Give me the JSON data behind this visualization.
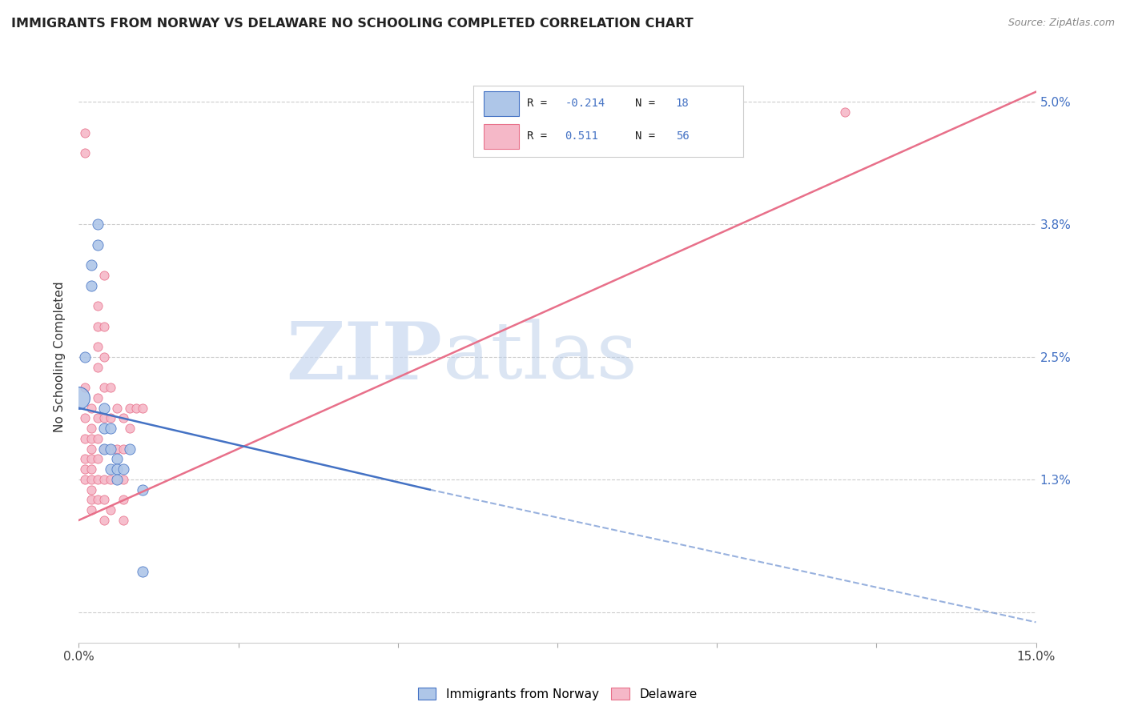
{
  "title": "IMMIGRANTS FROM NORWAY VS DELAWARE NO SCHOOLING COMPLETED CORRELATION CHART",
  "source": "Source: ZipAtlas.com",
  "ylabel": "No Schooling Completed",
  "xmin": 0.0,
  "xmax": 0.15,
  "ymin": -0.003,
  "ymax": 0.053,
  "watermark_zip": "ZIP",
  "watermark_atlas": "atlas",
  "legend_line1": "R = -0.214   N = 18",
  "legend_line2": "R =   0.511   N = 56",
  "legend_blue_label": "Immigrants from Norway",
  "legend_pink_label": "Delaware",
  "blue_color": "#aec6e8",
  "pink_color": "#f5b8c8",
  "blue_line_color": "#4472c4",
  "pink_line_color": "#e8708a",
  "blue_dots": [
    [
      0.001,
      0.025
    ],
    [
      0.002,
      0.034
    ],
    [
      0.002,
      0.032
    ],
    [
      0.003,
      0.038
    ],
    [
      0.003,
      0.036
    ],
    [
      0.004,
      0.02
    ],
    [
      0.004,
      0.018
    ],
    [
      0.004,
      0.016
    ],
    [
      0.005,
      0.018
    ],
    [
      0.005,
      0.016
    ],
    [
      0.005,
      0.014
    ],
    [
      0.006,
      0.015
    ],
    [
      0.006,
      0.014
    ],
    [
      0.006,
      0.013
    ],
    [
      0.007,
      0.014
    ],
    [
      0.008,
      0.016
    ],
    [
      0.01,
      0.012
    ],
    [
      0.01,
      0.004
    ]
  ],
  "pink_dots": [
    [
      0.001,
      0.047
    ],
    [
      0.001,
      0.045
    ],
    [
      0.001,
      0.022
    ],
    [
      0.001,
      0.019
    ],
    [
      0.001,
      0.017
    ],
    [
      0.001,
      0.015
    ],
    [
      0.001,
      0.014
    ],
    [
      0.001,
      0.013
    ],
    [
      0.002,
      0.02
    ],
    [
      0.002,
      0.018
    ],
    [
      0.002,
      0.017
    ],
    [
      0.002,
      0.016
    ],
    [
      0.002,
      0.015
    ],
    [
      0.002,
      0.014
    ],
    [
      0.002,
      0.013
    ],
    [
      0.002,
      0.012
    ],
    [
      0.002,
      0.011
    ],
    [
      0.002,
      0.01
    ],
    [
      0.003,
      0.03
    ],
    [
      0.003,
      0.028
    ],
    [
      0.003,
      0.026
    ],
    [
      0.003,
      0.024
    ],
    [
      0.003,
      0.021
    ],
    [
      0.003,
      0.019
    ],
    [
      0.003,
      0.017
    ],
    [
      0.003,
      0.015
    ],
    [
      0.003,
      0.013
    ],
    [
      0.003,
      0.011
    ],
    [
      0.004,
      0.033
    ],
    [
      0.004,
      0.028
    ],
    [
      0.004,
      0.025
    ],
    [
      0.004,
      0.022
    ],
    [
      0.004,
      0.019
    ],
    [
      0.004,
      0.016
    ],
    [
      0.004,
      0.013
    ],
    [
      0.004,
      0.011
    ],
    [
      0.004,
      0.009
    ],
    [
      0.005,
      0.022
    ],
    [
      0.005,
      0.019
    ],
    [
      0.005,
      0.016
    ],
    [
      0.005,
      0.013
    ],
    [
      0.005,
      0.01
    ],
    [
      0.006,
      0.02
    ],
    [
      0.006,
      0.016
    ],
    [
      0.006,
      0.013
    ],
    [
      0.007,
      0.019
    ],
    [
      0.007,
      0.016
    ],
    [
      0.007,
      0.013
    ],
    [
      0.007,
      0.011
    ],
    [
      0.007,
      0.009
    ],
    [
      0.008,
      0.02
    ],
    [
      0.008,
      0.018
    ],
    [
      0.009,
      0.02
    ],
    [
      0.01,
      0.02
    ],
    [
      0.093,
      0.048
    ],
    [
      0.12,
      0.049
    ]
  ],
  "blue_line_solid": {
    "x0": 0.0,
    "y0": 0.02,
    "x1": 0.055,
    "y1": 0.012
  },
  "blue_line_dash": {
    "x0": 0.055,
    "y0": 0.012,
    "x1": 0.15,
    "y1": -0.001
  },
  "pink_line": {
    "x0": 0.0,
    "y0": 0.009,
    "x1": 0.15,
    "y1": 0.051
  },
  "blue_dot_size": 90,
  "pink_dot_size": 65,
  "y_tick_vals": [
    0.0,
    0.013,
    0.025,
    0.038,
    0.05
  ],
  "y_tick_labels": [
    "",
    "1.3%",
    "2.5%",
    "3.8%",
    "5.0%"
  ]
}
